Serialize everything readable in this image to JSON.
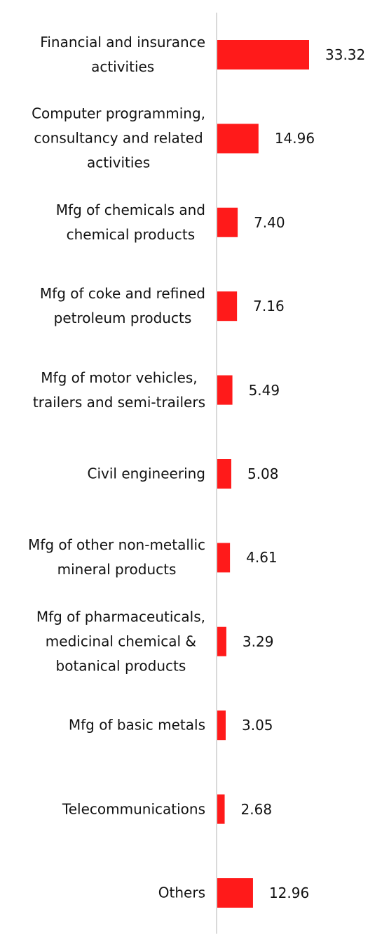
{
  "chart_data": {
    "type": "barh",
    "categories": [
      "Financial and insurance\nactivities",
      "Computer programming,\nconsultancy and related\nactivities",
      "Mfg of chemicals and\nchemical products",
      "Mfg of coke and refined\npetroleum products",
      "Mfg of motor vehicles,\ntrailers and semi-trailers",
      "Civil engineering",
      "Mfg of other non-metallic\nmineral products",
      "Mfg of pharmaceuticals,\nmedicinal chemical &\nbotanical products",
      "Mfg of basic metals",
      "Telecommunications",
      "Others"
    ],
    "values": [
      33.32,
      14.96,
      7.4,
      7.16,
      5.49,
      5.08,
      4.61,
      3.29,
      3.05,
      2.68,
      12.96
    ],
    "value_labels": [
      "33.32",
      "14.96",
      "7.40",
      "7.16",
      "5.49",
      "5.08",
      "4.61",
      "3.29",
      "3.05",
      "2.68",
      "12.96"
    ],
    "color": "#ff1a1a"
  }
}
